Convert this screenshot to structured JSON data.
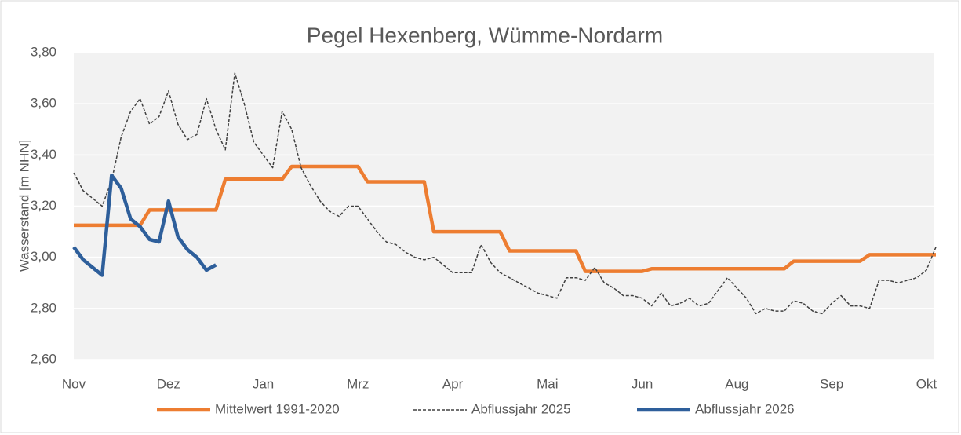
{
  "chart_data": {
    "type": "line",
    "title": "Pegel Hexenberg, Wümme-Nordarm",
    "y_label": "Wasserstand [m NHN]",
    "categories": [
      "Nov",
      null,
      null,
      null,
      null,
      null,
      null,
      null,
      null,
      null,
      "Dez",
      null,
      null,
      null,
      null,
      null,
      null,
      null,
      null,
      null,
      "Jan",
      null,
      null,
      null,
      null,
      null,
      null,
      null,
      null,
      null,
      "Mrz",
      null,
      null,
      null,
      null,
      null,
      null,
      null,
      null,
      null,
      "Apr",
      null,
      null,
      null,
      null,
      null,
      null,
      null,
      null,
      null,
      "Mai",
      null,
      null,
      null,
      null,
      null,
      null,
      null,
      null,
      null,
      "Jun",
      null,
      null,
      null,
      null,
      null,
      null,
      null,
      null,
      null,
      "Aug",
      null,
      null,
      null,
      null,
      null,
      null,
      null,
      null,
      null,
      "Sep",
      null,
      null,
      null,
      null,
      null,
      null,
      null,
      null,
      null,
      "Okt",
      null
    ],
    "series": [
      {
        "name": "Mittelwert 1991-2020",
        "color": "#ed7d31",
        "dash": false,
        "width": 4.5,
        "values": [
          3.125,
          3.125,
          3.125,
          3.125,
          3.125,
          3.125,
          3.125,
          3.125,
          3.185,
          3.185,
          3.185,
          3.185,
          3.185,
          3.185,
          3.185,
          3.185,
          3.305,
          3.305,
          3.305,
          3.305,
          3.305,
          3.305,
          3.305,
          3.355,
          3.355,
          3.355,
          3.355,
          3.355,
          3.355,
          3.355,
          3.355,
          3.295,
          3.295,
          3.295,
          3.295,
          3.295,
          3.295,
          3.295,
          3.1,
          3.1,
          3.1,
          3.1,
          3.1,
          3.1,
          3.1,
          3.1,
          3.025,
          3.025,
          3.025,
          3.025,
          3.025,
          3.025,
          3.025,
          3.025,
          2.945,
          2.945,
          2.945,
          2.945,
          2.945,
          2.945,
          2.945,
          2.955,
          2.955,
          2.955,
          2.955,
          2.955,
          2.955,
          2.955,
          2.955,
          2.955,
          2.955,
          2.955,
          2.955,
          2.955,
          2.955,
          2.955,
          2.985,
          2.985,
          2.985,
          2.985,
          2.985,
          2.985,
          2.985,
          2.985,
          3.01,
          3.01,
          3.01,
          3.01,
          3.01,
          3.01,
          3.01,
          3.01
        ]
      },
      {
        "name": "Abflussjahr 2025",
        "color": "#404040",
        "dash": true,
        "width": 1.5,
        "values": [
          3.33,
          3.26,
          3.23,
          3.2,
          3.3,
          3.47,
          3.57,
          3.62,
          3.52,
          3.55,
          3.65,
          3.52,
          3.46,
          3.48,
          3.62,
          3.5,
          3.42,
          3.72,
          3.6,
          3.45,
          3.4,
          3.35,
          3.57,
          3.5,
          3.35,
          3.28,
          3.22,
          3.18,
          3.16,
          3.2,
          3.2,
          3.15,
          3.1,
          3.06,
          3.05,
          3.02,
          3.0,
          2.99,
          3.0,
          2.97,
          2.94,
          2.94,
          2.94,
          3.05,
          2.98,
          2.94,
          2.92,
          2.9,
          2.88,
          2.86,
          2.85,
          2.84,
          2.92,
          2.92,
          2.91,
          2.96,
          2.9,
          2.88,
          2.85,
          2.85,
          2.84,
          2.81,
          2.86,
          2.81,
          2.82,
          2.84,
          2.81,
          2.82,
          2.87,
          2.92,
          2.88,
          2.84,
          2.78,
          2.8,
          2.79,
          2.79,
          2.83,
          2.82,
          2.79,
          2.78,
          2.82,
          2.85,
          2.81,
          2.81,
          2.8,
          2.91,
          2.91,
          2.9,
          2.91,
          2.92,
          2.95,
          3.04
        ]
      },
      {
        "name": "Abflussjahr 2026",
        "color": "#2e5f9b",
        "dash": false,
        "width": 4.5,
        "values": [
          3.04,
          2.99,
          2.96,
          2.93,
          3.32,
          3.27,
          3.15,
          3.12,
          3.07,
          3.06,
          3.22,
          3.08,
          3.03,
          3.0,
          2.95,
          2.97,
          null,
          null,
          null,
          null,
          null,
          null,
          null,
          null,
          null,
          null,
          null,
          null,
          null,
          null,
          null,
          null,
          null,
          null,
          null,
          null,
          null,
          null,
          null,
          null,
          null,
          null,
          null,
          null,
          null,
          null,
          null,
          null,
          null,
          null,
          null,
          null,
          null,
          null,
          null,
          null,
          null,
          null,
          null,
          null,
          null,
          null,
          null,
          null,
          null,
          null,
          null,
          null,
          null,
          null,
          null,
          null,
          null,
          null,
          null,
          null,
          null,
          null,
          null,
          null,
          null,
          null,
          null,
          null,
          null,
          null,
          null,
          null,
          null,
          null,
          null,
          null
        ]
      }
    ],
    "ylim": [
      2.6,
      3.8
    ],
    "yticks": [
      {
        "value": 2.6,
        "label": "2,60"
      },
      {
        "value": 2.8,
        "label": "2,80"
      },
      {
        "value": 3.0,
        "label": "3,00"
      },
      {
        "value": 3.2,
        "label": "3,20"
      },
      {
        "value": 3.4,
        "label": "3,40"
      },
      {
        "value": 3.6,
        "label": "3,60"
      },
      {
        "value": 3.8,
        "label": "3,80"
      }
    ],
    "grid": true,
    "legend": "bottom"
  }
}
